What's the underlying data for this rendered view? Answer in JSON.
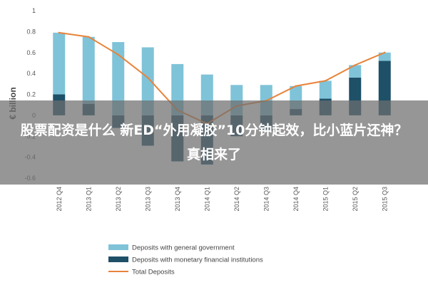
{
  "headline": "股票配资是什么 新ED“外用凝胶”10分钟起效，比小蓝片还神？真相来了",
  "chart_data": {
    "type": "bar",
    "categories": [
      "2012 Q4",
      "2013 Q1",
      "2013 Q2",
      "2013 Q3",
      "2013 Q4",
      "2014 Q1",
      "2014 Q2",
      "2014 Q3",
      "2014 Q4",
      "2015 Q1",
      "2015 Q2",
      "2015 Q3"
    ],
    "ylabel": "€ billion",
    "ylim": [
      -0.6,
      1.0
    ],
    "yticks": [
      -0.6,
      -0.4,
      -0.2,
      0,
      0.2,
      0.4,
      0.6,
      0.8,
      1
    ],
    "ytick_labels": [
      "-0.6",
      "-0.4",
      "-0.2",
      "0",
      "0.2",
      "0.4",
      "0.6",
      "0.8",
      "1"
    ],
    "series": [
      {
        "name": "Deposits with general government",
        "kind": "bar",
        "color": "#7fc3d8",
        "values": [
          0.59,
          0.64,
          0.7,
          0.65,
          0.49,
          0.39,
          0.29,
          0.29,
          0.22,
          0.17,
          0.12,
          0.08
        ]
      },
      {
        "name": "Deposits with monetary financial institutions",
        "kind": "bar",
        "color": "#1e5068",
        "values": [
          0.2,
          0.11,
          -0.12,
          -0.29,
          -0.44,
          -0.47,
          -0.2,
          -0.15,
          0.06,
          0.16,
          0.36,
          0.52
        ]
      },
      {
        "name": "Total Deposits",
        "kind": "line",
        "color": "#e8833a",
        "values": [
          0.79,
          0.75,
          0.58,
          0.36,
          0.05,
          -0.08,
          0.09,
          0.14,
          0.28,
          0.33,
          0.48,
          0.6
        ]
      }
    ],
    "legend": "bottom"
  }
}
